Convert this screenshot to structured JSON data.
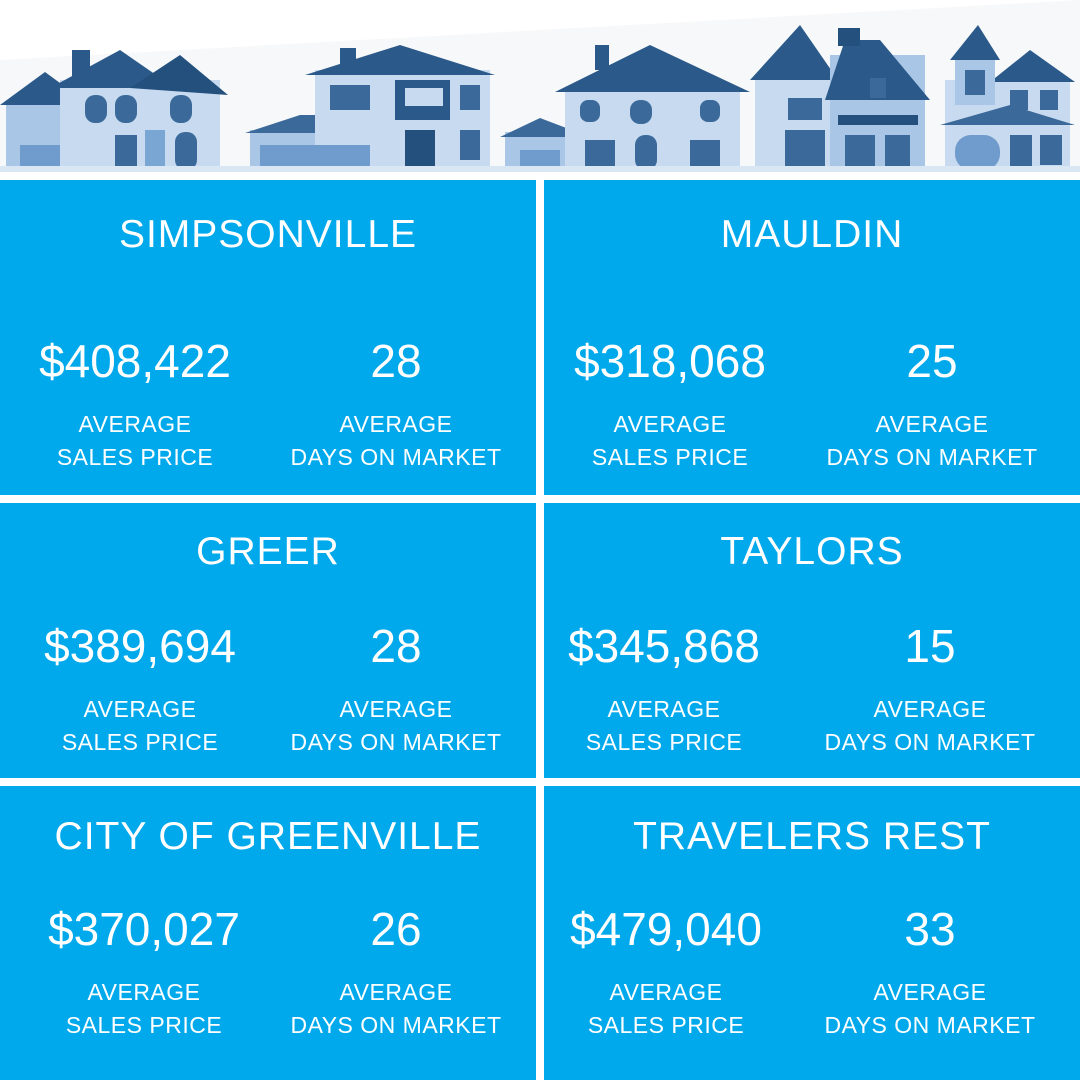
{
  "colors": {
    "panel": "#00a9ec",
    "divider": "#ffffff",
    "text": "#ffffff",
    "house_dark": "#2b5a8a",
    "house_mid": "#6f9ccc",
    "house_light": "#c7daf0"
  },
  "header": {
    "illustration": "row-of-houses"
  },
  "panels": [
    {
      "city": "SIMPSONVILLE",
      "price": "$408,422",
      "days": "28",
      "price_label_1": "AVERAGE",
      "price_label_2": "SALES PRICE",
      "days_label_1": "AVERAGE",
      "days_label_2": "DAYS ON MARKET"
    },
    {
      "city": "MAULDIN",
      "price": "$318,068",
      "days": "25",
      "price_label_1": "AVERAGE",
      "price_label_2": "SALES PRICE",
      "days_label_1": "AVERAGE",
      "days_label_2": "DAYS ON MARKET"
    },
    {
      "city": "GREER",
      "price": "$389,694",
      "days": "28",
      "price_label_1": "AVERAGE",
      "price_label_2": "SALES PRICE",
      "days_label_1": "AVERAGE",
      "days_label_2": "DAYS ON MARKET"
    },
    {
      "city": "TAYLORS",
      "price": "$345,868",
      "days": "15",
      "price_label_1": "AVERAGE",
      "price_label_2": "SALES PRICE",
      "days_label_1": "AVERAGE",
      "days_label_2": "DAYS ON MARKET"
    },
    {
      "city": "CITY OF GREENVILLE",
      "price": "$370,027",
      "days": "26",
      "price_label_1": "AVERAGE",
      "price_label_2": "SALES PRICE",
      "days_label_1": "AVERAGE",
      "days_label_2": "DAYS ON MARKET"
    },
    {
      "city": "TRAVELERS REST",
      "price": "$479,040",
      "days": "33",
      "price_label_1": "AVERAGE",
      "price_label_2": "SALES PRICE",
      "days_label_1": "AVERAGE",
      "days_label_2": "DAYS ON MARKET"
    }
  ]
}
